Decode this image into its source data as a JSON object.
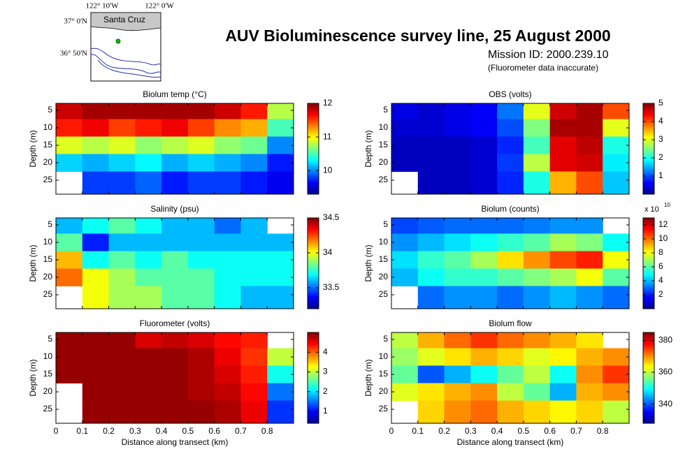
{
  "title": "AUV Bioluminescence survey line, 25 August 2000",
  "mission": "Mission ID: 2000.239.10",
  "note": "(Fluorometer data inaccurate)",
  "inset_map": {
    "lon_labels": [
      "122° 10'W",
      "122° 0'W"
    ],
    "lat_labels": [
      "37° 0'N",
      "36° 50'N"
    ],
    "place": "Santa Cruz"
  },
  "chart_data": [
    {
      "type": "heatmap",
      "title": "Biolum temp (°C)",
      "ylabel": "Depth (m)",
      "colormap": "jet",
      "xlim": [
        0,
        0.9
      ],
      "xticks": [
        0,
        0.1,
        0.2,
        0.3,
        0.4,
        0.5,
        0.6,
        0.7,
        0.8
      ],
      "xtick_labels": false,
      "ylim": [
        29,
        3
      ],
      "yticks": [
        5,
        10,
        15,
        20,
        25
      ],
      "clim": [
        9.3,
        12
      ],
      "cticks": [
        10,
        11,
        12
      ],
      "x": [
        0.05,
        0.15,
        0.25,
        0.35,
        0.45,
        0.55,
        0.65,
        0.75,
        0.85
      ],
      "y": [
        5,
        10,
        15,
        20,
        25
      ],
      "z": [
        [
          11.8,
          11.9,
          11.9,
          11.9,
          11.9,
          11.9,
          11.8,
          11.6,
          10.8
        ],
        [
          11.6,
          11.7,
          11.5,
          11.6,
          11.7,
          11.5,
          11.3,
          11.2,
          10.5
        ],
        [
          10.9,
          10.8,
          10.9,
          10.7,
          10.8,
          10.9,
          10.7,
          10.6,
          10.0
        ],
        [
          10.2,
          10.1,
          10.2,
          10.3,
          10.1,
          10.2,
          10.1,
          10.0,
          9.7
        ],
        [
          null,
          9.8,
          9.8,
          9.9,
          9.7,
          9.8,
          9.8,
          9.7,
          9.6
        ]
      ]
    },
    {
      "type": "heatmap",
      "title": "OBS (volts)",
      "ylabel": "Depth (m)",
      "colormap": "jet",
      "xlim": [
        0,
        0.9
      ],
      "xticks": [
        0,
        0.1,
        0.2,
        0.3,
        0.4,
        0.5,
        0.6,
        0.7,
        0.8
      ],
      "xtick_labels": false,
      "ylim": [
        29,
        3
      ],
      "yticks": [
        5,
        10,
        15,
        20,
        25
      ],
      "clim": [
        0,
        5
      ],
      "cticks": [
        1,
        2,
        3,
        4,
        5
      ],
      "x": [
        0.05,
        0.15,
        0.25,
        0.35,
        0.45,
        0.55,
        0.65,
        0.75,
        0.85
      ],
      "y": [
        5,
        10,
        15,
        20,
        25
      ],
      "z": [
        [
          0.5,
          0.4,
          0.5,
          0.6,
          1.2,
          3.0,
          4.6,
          4.8,
          4.0
        ],
        [
          0.4,
          0.4,
          0.5,
          0.6,
          1.0,
          2.5,
          4.8,
          4.8,
          3.0
        ],
        [
          0.3,
          0.3,
          0.3,
          0.4,
          0.8,
          2.2,
          4.5,
          4.7,
          2.0
        ],
        [
          0.3,
          0.3,
          0.3,
          0.4,
          0.9,
          2.8,
          4.5,
          4.6,
          1.8
        ],
        [
          null,
          0.3,
          0.3,
          0.4,
          0.8,
          2.0,
          3.5,
          4.0,
          1.6
        ]
      ]
    },
    {
      "type": "heatmap",
      "title": "Salinity (psu)",
      "ylabel": "Depth (m)",
      "colormap": "jet",
      "xlim": [
        0,
        0.9
      ],
      "xticks": [
        0,
        0.1,
        0.2,
        0.3,
        0.4,
        0.5,
        0.6,
        0.7,
        0.8
      ],
      "xtick_labels": false,
      "ylim": [
        29,
        3
      ],
      "yticks": [
        5,
        10,
        15,
        20,
        25
      ],
      "clim": [
        33.2,
        34.5
      ],
      "cticks": [
        33.5,
        34,
        34.5
      ],
      "x": [
        0.05,
        0.15,
        0.25,
        0.35,
        0.45,
        0.55,
        0.65,
        0.75,
        0.85
      ],
      "y": [
        5,
        10,
        15,
        20,
        25
      ],
      "z": [
        [
          33.6,
          33.7,
          33.8,
          33.7,
          33.6,
          33.6,
          33.5,
          33.6,
          null
        ],
        [
          33.8,
          33.4,
          33.6,
          33.6,
          33.6,
          33.6,
          33.6,
          33.6,
          33.6
        ],
        [
          34.1,
          33.7,
          33.8,
          33.7,
          33.8,
          33.7,
          33.7,
          33.7,
          33.7
        ],
        [
          34.2,
          34.0,
          33.9,
          33.8,
          33.8,
          33.8,
          33.7,
          33.7,
          33.7
        ],
        [
          null,
          34.0,
          33.9,
          33.9,
          33.8,
          33.8,
          33.7,
          33.6,
          33.6
        ]
      ]
    },
    {
      "type": "heatmap",
      "title": "Biolum (counts)",
      "ylabel": "Depth (m)",
      "colormap": "jet",
      "xlim": [
        0,
        0.9
      ],
      "xticks": [
        0,
        0.1,
        0.2,
        0.3,
        0.4,
        0.5,
        0.6,
        0.7,
        0.8
      ],
      "xtick_labels": false,
      "ylim": [
        29,
        3
      ],
      "yticks": [
        5,
        10,
        15,
        20,
        25
      ],
      "clim": [
        0,
        13
      ],
      "cticks": [
        2,
        4,
        6,
        8,
        10,
        12
      ],
      "colorbar_scale": "x 10",
      "colorbar_exponent": "10",
      "x": [
        0.05,
        0.15,
        0.25,
        0.35,
        0.45,
        0.55,
        0.65,
        0.75,
        0.85
      ],
      "y": [
        5,
        10,
        15,
        20,
        25
      ],
      "z": [
        [
          2.5,
          2.8,
          3.0,
          3.0,
          3.0,
          3.2,
          3.5,
          3.5,
          null
        ],
        [
          3.5,
          4.0,
          4.5,
          5.0,
          5.5,
          6.0,
          7.0,
          6.5,
          5.0
        ],
        [
          4.5,
          5.5,
          6.0,
          7.0,
          8.5,
          9.5,
          10.5,
          11.0,
          8.0
        ],
        [
          4.0,
          5.0,
          5.5,
          5.5,
          6.0,
          6.5,
          7.0,
          8.0,
          6.0
        ],
        [
          null,
          3.0,
          3.5,
          3.5,
          3.0,
          3.5,
          4.0,
          3.5,
          3.0
        ]
      ]
    },
    {
      "type": "heatmap",
      "title": "Fluorometer (volts)",
      "ylabel": "Depth (m)",
      "xlabel": "Distance along transect (km)",
      "colormap": "jet",
      "xlim": [
        0,
        0.9
      ],
      "xticks": [
        0,
        0.1,
        0.2,
        0.3,
        0.4,
        0.5,
        0.6,
        0.7,
        0.8
      ],
      "xtick_labels": true,
      "ylim": [
        29,
        3
      ],
      "yticks": [
        5,
        10,
        15,
        20,
        25
      ],
      "clim": [
        0.4,
        5
      ],
      "cticks": [
        1,
        2,
        3,
        4
      ],
      "x": [
        0.05,
        0.15,
        0.25,
        0.35,
        0.45,
        0.55,
        0.65,
        0.75,
        0.85
      ],
      "y": [
        5,
        10,
        15,
        20,
        25
      ],
      "z": [
        [
          4.9,
          4.9,
          4.9,
          4.6,
          4.7,
          4.6,
          4.4,
          4.3,
          null
        ],
        [
          4.9,
          4.9,
          4.9,
          4.9,
          4.9,
          4.8,
          4.5,
          4.2,
          3.0
        ],
        [
          4.9,
          4.9,
          4.9,
          4.9,
          4.9,
          4.8,
          4.6,
          4.3,
          2.2
        ],
        [
          null,
          4.9,
          4.9,
          4.9,
          4.9,
          4.8,
          4.7,
          4.4,
          1.5
        ],
        [
          null,
          4.9,
          4.9,
          4.9,
          4.9,
          4.9,
          4.8,
          4.5,
          1.2
        ]
      ]
    },
    {
      "type": "heatmap",
      "title": "Biolum flow",
      "ylabel": "Depth (m)",
      "xlabel": "Distance along transect (km)",
      "colormap": "jet",
      "xlim": [
        0,
        0.9
      ],
      "xticks": [
        0,
        0.1,
        0.2,
        0.3,
        0.4,
        0.5,
        0.6,
        0.7,
        0.8
      ],
      "xtick_labels": true,
      "ylim": [
        29,
        3
      ],
      "yticks": [
        5,
        10,
        15,
        20,
        25
      ],
      "clim": [
        328,
        385
      ],
      "cticks": [
        340,
        360,
        380
      ],
      "x": [
        0.05,
        0.15,
        0.25,
        0.35,
        0.45,
        0.55,
        0.65,
        0.75,
        0.85
      ],
      "y": [
        5,
        10,
        15,
        20,
        25
      ],
      "z": [
        [
          360,
          368,
          372,
          375,
          372,
          370,
          368,
          365,
          null
        ],
        [
          358,
          362,
          365,
          368,
          366,
          362,
          364,
          368,
          370
        ],
        [
          355,
          340,
          345,
          350,
          355,
          360,
          350,
          370,
          375
        ],
        [
          362,
          365,
          368,
          370,
          360,
          355,
          345,
          368,
          370
        ],
        [
          null,
          366,
          370,
          372,
          368,
          366,
          364,
          366,
          360
        ]
      ]
    }
  ]
}
